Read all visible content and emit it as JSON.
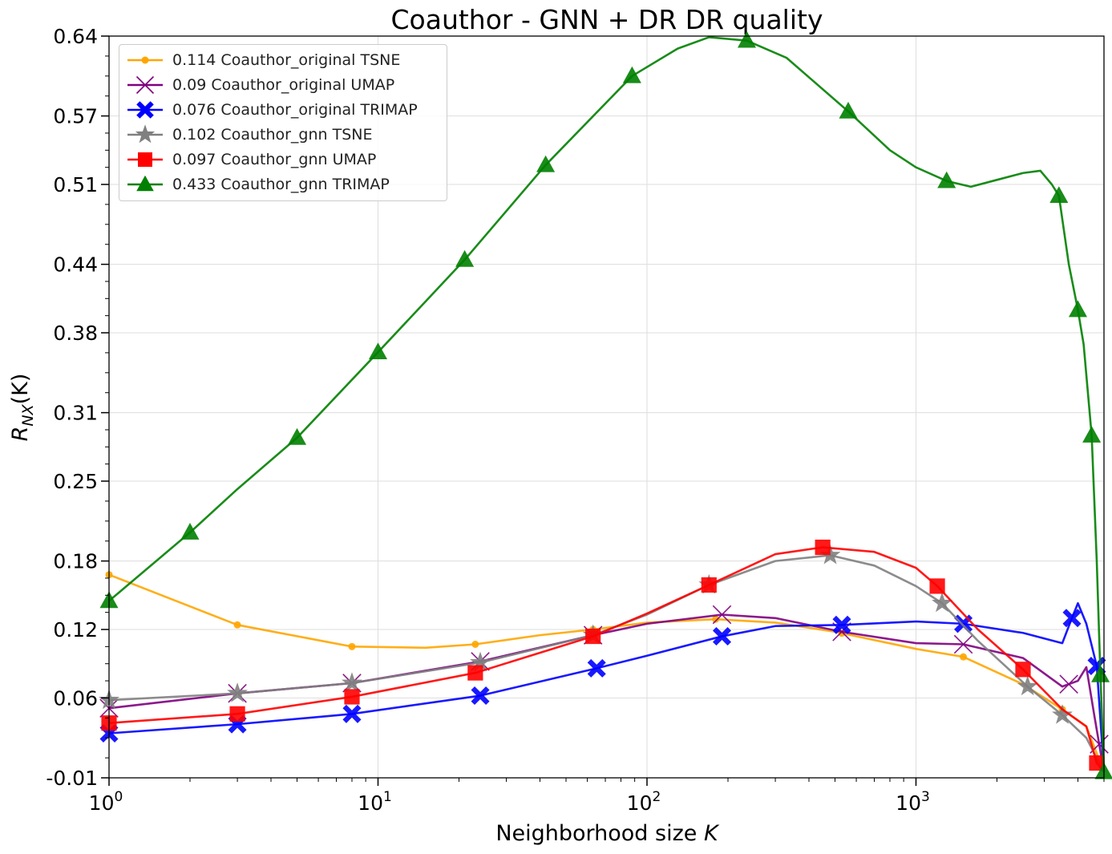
{
  "chart_data": {
    "type": "line",
    "title": "Coauthor - GNN + DR DR quality",
    "xlabel": "Neighborhood size K",
    "ylabel": "R_NX(K)",
    "xscale": "log",
    "xlim": [
      1,
      5000
    ],
    "ylim": [
      -0.01,
      0.64
    ],
    "x_ticks": [
      "10^0",
      "10^1",
      "10^2",
      "10^3"
    ],
    "y_ticks": [
      "-0.01",
      "0.06",
      "0.12",
      "0.18",
      "0.25",
      "0.31",
      "0.38",
      "0.44",
      "0.51",
      "0.57",
      "0.64"
    ],
    "grid": true,
    "legend_position": "top-left",
    "series": [
      {
        "name": "0.114 Coauthor_original TSNE",
        "color": "#FFA500",
        "marker": "circle",
        "x": [
          1,
          3,
          8,
          15,
          23,
          40,
          63,
          100,
          180,
          300,
          500,
          1000,
          1500,
          2500,
          3500,
          4300,
          5000
        ],
        "y": [
          0.168,
          0.124,
          0.105,
          0.104,
          0.107,
          0.115,
          0.12,
          0.126,
          0.129,
          0.126,
          0.118,
          0.103,
          0.096,
          0.072,
          0.05,
          0.035,
          -0.005
        ],
        "marker_x": [
          1,
          3,
          8,
          23,
          63,
          180,
          530,
          1500,
          3500
        ]
      },
      {
        "name": "0.09 Coauthor_original UMAP",
        "color": "#800080",
        "marker": "x",
        "x": [
          1,
          3,
          8,
          24,
          63,
          100,
          190,
          300,
          530,
          1000,
          1500,
          2500,
          3500,
          4000,
          4300,
          4600,
          5000
        ],
        "y": [
          0.051,
          0.064,
          0.073,
          0.092,
          0.115,
          0.125,
          0.133,
          0.13,
          0.118,
          0.108,
          0.107,
          0.095,
          0.07,
          0.075,
          0.087,
          0.045,
          -0.005
        ],
        "marker_x": [
          1,
          3,
          8,
          24,
          63,
          190,
          530,
          1500,
          3700,
          4800
        ]
      },
      {
        "name": "0.076 Coauthor_original TRIMAP",
        "color": "#0000FF",
        "marker": "X",
        "x": [
          1,
          3,
          8,
          24,
          65,
          100,
          190,
          300,
          530,
          1000,
          1500,
          2500,
          3500,
          3800,
          4000,
          4300,
          4700,
          5000
        ],
        "y": [
          0.029,
          0.037,
          0.046,
          0.062,
          0.086,
          0.097,
          0.114,
          0.123,
          0.124,
          0.127,
          0.125,
          0.117,
          0.108,
          0.13,
          0.143,
          0.125,
          0.088,
          -0.005
        ],
        "marker_x": [
          1,
          3,
          8,
          24,
          65,
          190,
          530,
          1500,
          3800,
          4700
        ]
      },
      {
        "name": "0.102 Coauthor_gnn TSNE",
        "color": "#808080",
        "marker": "star",
        "x": [
          1,
          3,
          8,
          24,
          63,
          100,
          170,
          300,
          480,
          700,
          1000,
          1250,
          1700,
          2600,
          3500,
          4300,
          5000
        ],
        "y": [
          0.058,
          0.064,
          0.073,
          0.091,
          0.115,
          0.133,
          0.159,
          0.18,
          0.185,
          0.176,
          0.158,
          0.143,
          0.11,
          0.07,
          0.045,
          0.025,
          -0.005
        ],
        "marker_x": [
          1,
          3,
          8,
          24,
          63,
          170,
          480,
          1250,
          2600,
          3500
        ]
      },
      {
        "name": "0.097 Coauthor_gnn UMAP",
        "color": "#FF0000",
        "marker": "square",
        "x": [
          1,
          3,
          8,
          23,
          63,
          100,
          170,
          300,
          450,
          700,
          1000,
          1200,
          1700,
          2500,
          3500,
          4300,
          4700,
          5000
        ],
        "y": [
          0.038,
          0.046,
          0.061,
          0.082,
          0.114,
          0.134,
          0.159,
          0.186,
          0.192,
          0.188,
          0.174,
          0.158,
          0.12,
          0.085,
          0.05,
          0.035,
          0.003,
          -0.005
        ],
        "marker_x": [
          1,
          3,
          8,
          23,
          63,
          170,
          450,
          1200,
          2500,
          4700
        ]
      },
      {
        "name": "0.433 Coauthor_gnn TRIMAP",
        "color": "#008000",
        "marker": "triangle",
        "x": [
          1,
          2,
          3,
          5,
          10,
          21,
          42,
          88,
          130,
          170,
          235,
          330,
          560,
          800,
          1000,
          1300,
          1600,
          2000,
          2500,
          2900,
          3200,
          3400,
          3700,
          4000,
          4200,
          4500,
          4700,
          4850,
          5000
        ],
        "y": [
          0.145,
          0.205,
          0.243,
          0.288,
          0.363,
          0.444,
          0.527,
          0.605,
          0.629,
          0.639,
          0.636,
          0.621,
          0.574,
          0.54,
          0.525,
          0.513,
          0.508,
          0.514,
          0.52,
          0.522,
          0.51,
          0.5,
          0.44,
          0.4,
          0.37,
          0.29,
          0.18,
          0.08,
          -0.005
        ],
        "marker_x": [
          1,
          2,
          5,
          10,
          21,
          42,
          88,
          235,
          560,
          1300,
          3400,
          4000,
          4500,
          4850,
          5000
        ]
      }
    ]
  }
}
